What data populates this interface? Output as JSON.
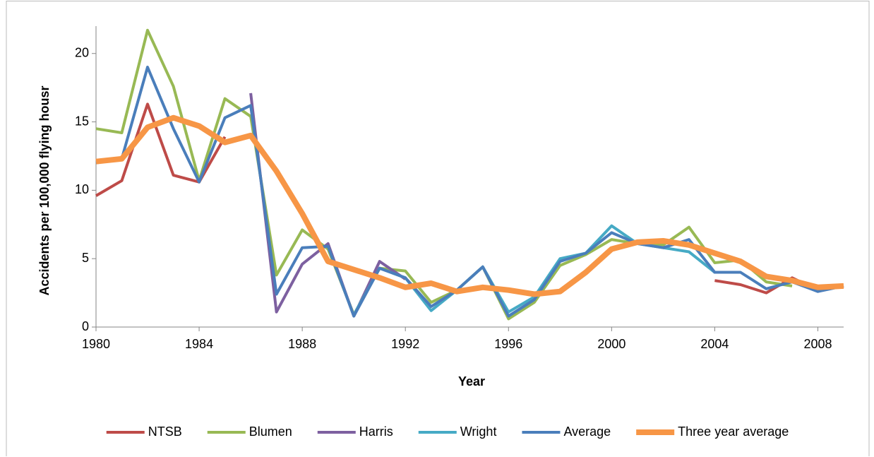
{
  "chart_data": {
    "type": "line",
    "x_label": "Year",
    "y_label": "Accidents per 100,000 flying housr",
    "x": [
      1980,
      1981,
      1982,
      1983,
      1984,
      1985,
      1986,
      1987,
      1988,
      1989,
      1990,
      1991,
      1992,
      1993,
      1994,
      1995,
      1996,
      1997,
      1998,
      1999,
      2000,
      2001,
      2002,
      2003,
      2004,
      2005,
      2006,
      2007,
      2008,
      2009
    ],
    "series": [
      {
        "name": "NTSB",
        "color": "#be4b48",
        "values": [
          9.6,
          10.7,
          16.3,
          11.1,
          10.6,
          13.9,
          null,
          null,
          null,
          null,
          null,
          null,
          null,
          null,
          null,
          null,
          null,
          null,
          null,
          null,
          null,
          null,
          null,
          null,
          3.4,
          3.1,
          2.5,
          3.6,
          2.7,
          3.0
        ]
      },
      {
        "name": "Blumen",
        "color": "#98b954",
        "values": [
          14.5,
          14.2,
          21.7,
          17.6,
          10.7,
          16.7,
          15.4,
          3.8,
          7.1,
          5.7,
          0.9,
          4.3,
          4.1,
          1.8,
          2.7,
          4.4,
          0.6,
          1.8,
          4.5,
          5.3,
          6.4,
          6.1,
          6.0,
          7.3,
          4.7,
          4.9,
          3.3,
          3.0,
          null,
          null
        ]
      },
      {
        "name": "Harris",
        "color": "#7d60a0",
        "values": [
          null,
          null,
          null,
          null,
          null,
          null,
          17.1,
          1.1,
          4.6,
          6.1,
          0.8,
          4.8,
          3.5,
          null,
          null,
          null,
          null,
          null,
          null,
          null,
          null,
          null,
          null,
          null,
          null,
          null,
          null,
          null,
          null,
          null
        ]
      },
      {
        "name": "Wright",
        "color": "#46aac5",
        "values": [
          null,
          null,
          null,
          null,
          null,
          null,
          null,
          null,
          null,
          null,
          0.9,
          4.3,
          3.6,
          1.2,
          2.7,
          4.4,
          1.1,
          2.2,
          5.0,
          5.4,
          7.4,
          6.1,
          5.8,
          5.5,
          4.0,
          4.0,
          null,
          null,
          null,
          null
        ]
      },
      {
        "name": "Average",
        "color": "#4a7ebb",
        "values": [
          12.0,
          12.3,
          19.0,
          14.5,
          10.6,
          15.3,
          16.2,
          2.4,
          5.8,
          5.9,
          0.8,
          4.3,
          3.6,
          1.5,
          2.7,
          4.4,
          0.8,
          2.0,
          4.8,
          5.4,
          6.9,
          6.1,
          5.8,
          6.4,
          4.0,
          4.0,
          2.8,
          3.3,
          2.6,
          3.0
        ]
      },
      {
        "name": "Three year average",
        "color": "#f79646",
        "values": [
          12.1,
          12.3,
          14.6,
          15.3,
          14.7,
          13.5,
          14.0,
          11.4,
          8.3,
          4.8,
          4.2,
          3.6,
          2.9,
          3.2,
          2.6,
          2.9,
          2.7,
          2.4,
          2.6,
          4.0,
          5.7,
          6.2,
          6.3,
          6.0,
          5.4,
          4.8,
          3.7,
          3.4,
          2.9,
          3.0
        ]
      }
    ],
    "xlim": [
      1980,
      2009
    ],
    "xticks": [
      1980,
      1984,
      1988,
      1992,
      1996,
      2000,
      2004,
      2008
    ],
    "ylim": [
      0,
      22
    ],
    "yticks": [
      0,
      5,
      10,
      15,
      20
    ],
    "grid": false,
    "legend": "bottom"
  }
}
